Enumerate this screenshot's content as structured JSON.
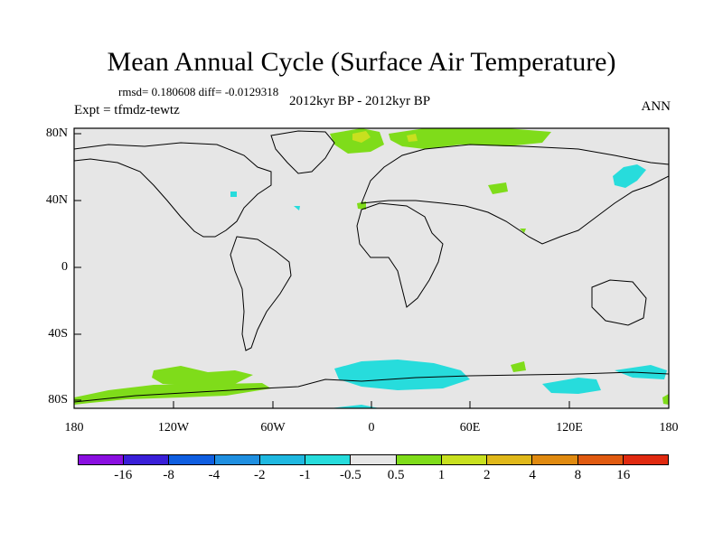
{
  "title": "Mean Annual Cycle (Surface Air Temperature)",
  "stats": "rmsd= 0.180608 diff= -0.0129318",
  "subtitle": "2012kyr BP - 2012kyr BP",
  "experiment": "Expt = tfmdz-tewtz",
  "season": "ANN",
  "axes": {
    "lat_labels": [
      "80N",
      "40N",
      "0",
      "40S",
      "80S"
    ],
    "lon_labels": [
      "180",
      "120W",
      "60W",
      "0",
      "60E",
      "120E",
      "180"
    ]
  },
  "colorbar": {
    "labels": [
      "-16",
      "-8",
      "-4",
      "-2",
      "-1",
      "-0.5",
      "0.5",
      "1",
      "2",
      "4",
      "8",
      "16"
    ],
    "colors": [
      "#8a0fe0",
      "#3a1fd8",
      "#0f5ee0",
      "#1f8fe0",
      "#1fb8e0",
      "#27dcdc",
      "#e6e6e6",
      "#7fdc1a",
      "#c8e01f",
      "#e0b81a",
      "#e08a10",
      "#e05a10",
      "#e02a10"
    ]
  },
  "background_color": "#e6e6e6",
  "anomaly_colors": {
    "plus_half_to_one": "#7fdc1a",
    "one_to_two": "#c8e01f",
    "minus_one_to_half": "#27dcdc"
  }
}
